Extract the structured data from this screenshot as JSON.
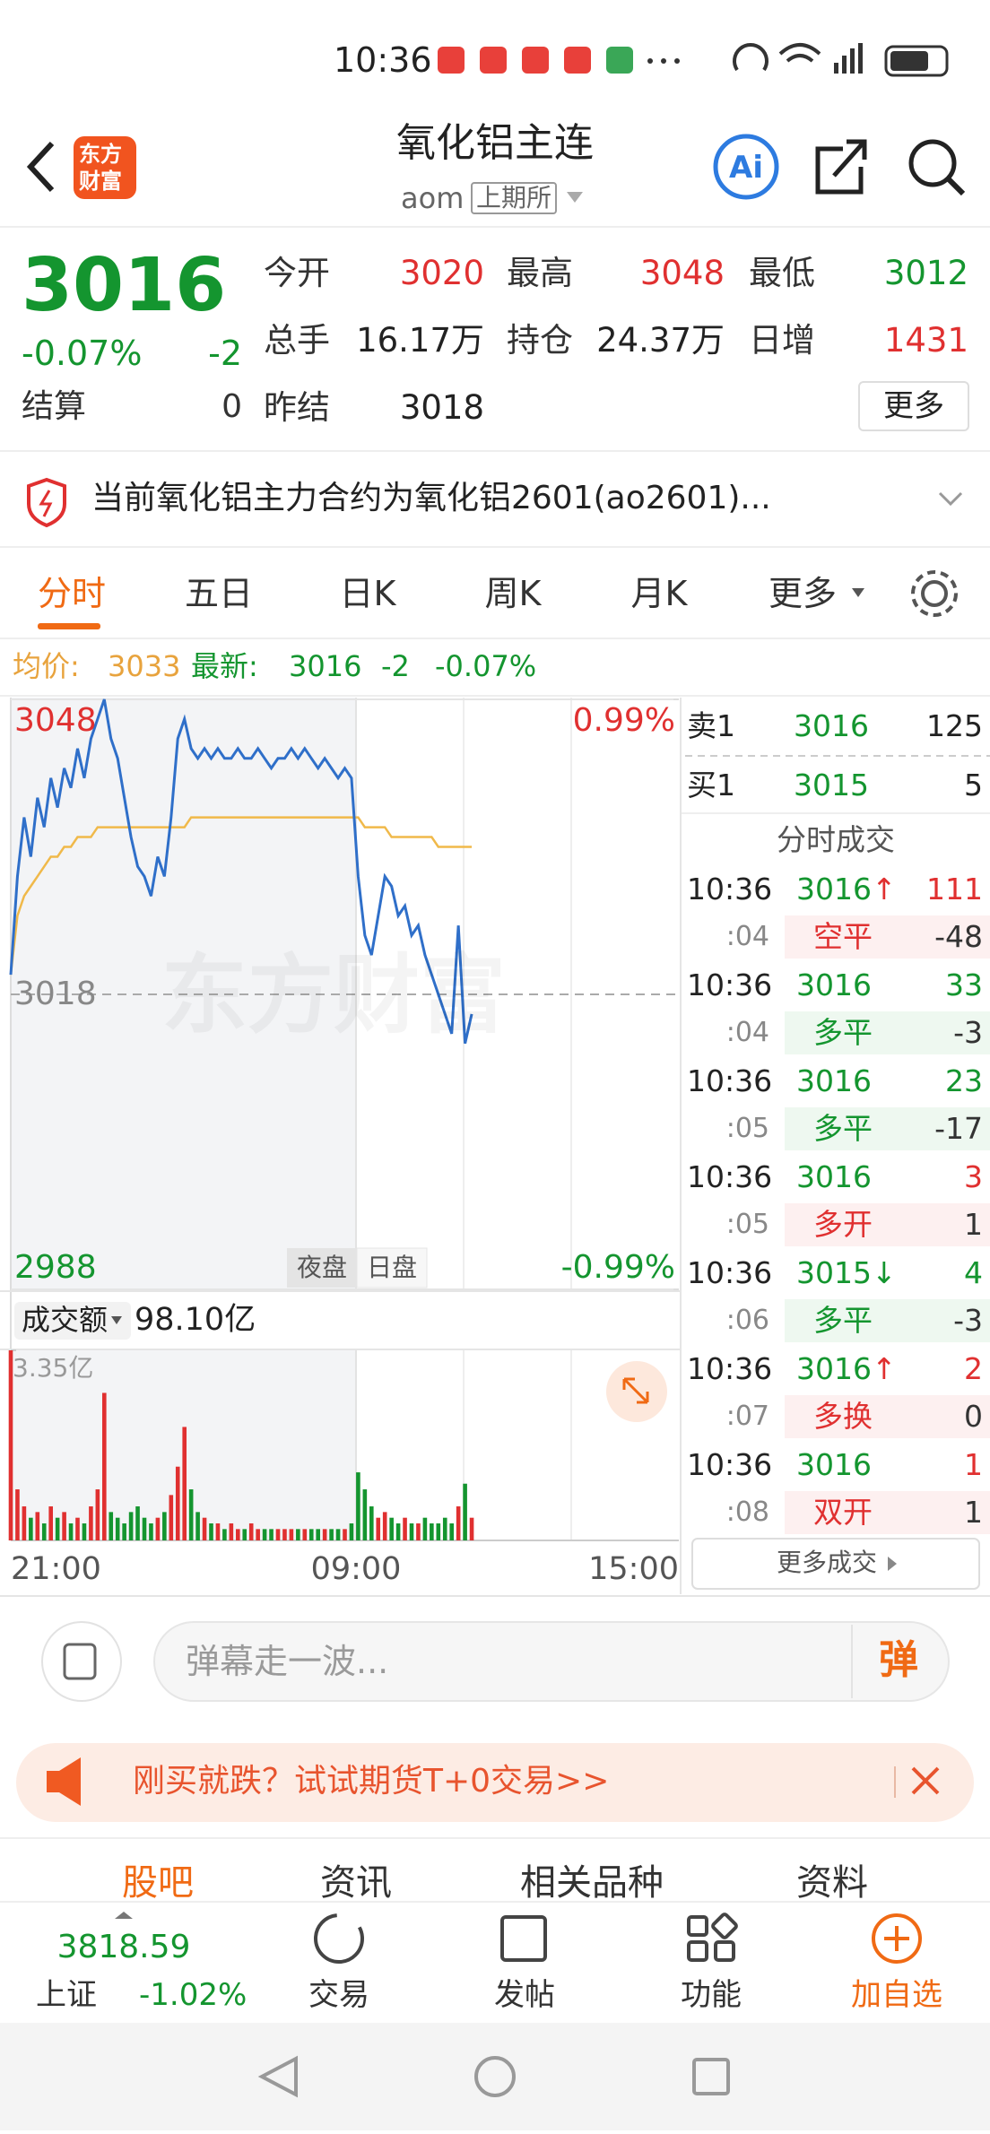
{
  "status_bar": {
    "time": "10:36"
  },
  "header": {
    "logo": [
      "东方",
      "财富"
    ],
    "title": "氧化铝主连",
    "code": "aom",
    "exchange": "上期所",
    "ai": "Ai"
  },
  "quote": {
    "price": "3016",
    "change_pct": "-0.07%",
    "change": "-2",
    "settle_label": "结算",
    "settle": "0",
    "more": "更多",
    "fields": [
      {
        "label": "今开",
        "value": "3020"
      },
      {
        "label": "最高",
        "value": "3048"
      },
      {
        "label": "最低",
        "value": "3012"
      },
      {
        "label": "总手",
        "value": "16.17万"
      },
      {
        "label": "持仓",
        "value": "24.37万"
      },
      {
        "label": "日增",
        "value": "1431"
      },
      {
        "label": "昨结",
        "value": "3018"
      }
    ]
  },
  "notice": "当前氧化铝主力合约为氧化铝2601(ao2601)...",
  "tabs": [
    "分时",
    "五日",
    "日K",
    "周K",
    "月K",
    "更多"
  ],
  "info": {
    "avg_label": "均价:",
    "avg": "3033",
    "last_label": "最新:",
    "last": "3016",
    "change": "-2",
    "change_pct": "-0.07%"
  },
  "chart_data": {
    "type": "line",
    "watermark": "东方财富",
    "ylim": [
      2988,
      3048
    ],
    "yticks": [
      2988,
      3018,
      3048
    ],
    "y2lim": [
      -0.99,
      0.99
    ],
    "y2ticks": [
      {
        "value": -0.99,
        "label": "-0.99%"
      },
      {
        "value": 0.99,
        "label": "0.99%"
      }
    ],
    "xticks": [
      "21:00",
      "09:00",
      "15:00"
    ],
    "sessions": [
      "夜盘",
      "日盘"
    ],
    "series": [
      {
        "color": "#2f6fc9",
        "values": [
          3020,
          3030,
          3036,
          3032,
          3038,
          3035,
          3040,
          3037,
          3041,
          3039,
          3043,
          3040,
          3044,
          3046,
          3048,
          3044,
          3042,
          3038,
          3034,
          3031,
          3030,
          3028,
          3032,
          3030,
          3036,
          3044,
          3046,
          3043,
          3042,
          3043,
          3042,
          3043,
          3042,
          3042,
          3043,
          3042,
          3042,
          3043,
          3042,
          3041,
          3042,
          3042,
          3043,
          3042,
          3043,
          3042,
          3041,
          3042,
          3041,
          3040,
          3041,
          3040,
          3030,
          3024,
          3022,
          3026,
          3030,
          3029,
          3026,
          3027,
          3024,
          3025,
          3022,
          3020,
          3018,
          3016,
          3014,
          3025,
          3013,
          3016
        ]
      },
      {
        "color": "#f0b94a",
        "values": [
          3020,
          3026,
          3028,
          3029,
          3030,
          3031,
          3032,
          3032,
          3033,
          3033,
          3034,
          3034,
          3034,
          3035,
          3035,
          3035,
          3035,
          3035,
          3035,
          3035,
          3035,
          3035,
          3035,
          3035,
          3035,
          3035,
          3035,
          3036,
          3036,
          3036,
          3036,
          3036,
          3036,
          3036,
          3036,
          3036,
          3036,
          3036,
          3036,
          3036,
          3036,
          3036,
          3036,
          3036,
          3036,
          3036,
          3036,
          3036,
          3036,
          3036,
          3036,
          3036,
          3036,
          3035,
          3035,
          3035,
          3035,
          3034,
          3034,
          3034,
          3034,
          3034,
          3034,
          3034,
          3033,
          3033,
          3033,
          3033,
          3033,
          3033
        ]
      }
    ],
    "volume": {
      "label": "成交额",
      "total": "98.10亿",
      "ylim": [
        0,
        3.35
      ],
      "yticks": [
        {
          "value": 3.35,
          "label": "3.35亿"
        }
      ],
      "colors": [
        "#e03030",
        "#14952f"
      ],
      "values": [
        3.35,
        0.9,
        0.6,
        0.4,
        0.5,
        0.3,
        0.6,
        0.4,
        0.5,
        0.3,
        0.4,
        0.3,
        0.6,
        0.9,
        2.6,
        0.5,
        0.4,
        0.3,
        0.5,
        0.6,
        0.4,
        0.3,
        0.4,
        0.5,
        0.8,
        1.3,
        2.0,
        0.9,
        0.5,
        0.4,
        0.3,
        0.3,
        0.2,
        0.3,
        0.2,
        0.2,
        0.3,
        0.2,
        0.2,
        0.2,
        0.2,
        0.2,
        0.2,
        0.2,
        0.2,
        0.2,
        0.2,
        0.2,
        0.2,
        0.2,
        0.2,
        0.3,
        1.2,
        0.9,
        0.6,
        0.4,
        0.5,
        0.4,
        0.3,
        0.4,
        0.3,
        0.3,
        0.4,
        0.3,
        0.3,
        0.4,
        0.3,
        0.6,
        1.0,
        0.4
      ]
    }
  },
  "order_book": {
    "ask_label": "卖1",
    "ask_price": "3016",
    "ask_volume": "125",
    "bid_label": "买1",
    "bid_price": "3015",
    "bid_volume": "5"
  },
  "trades_title": "分时成交",
  "trades": [
    {
      "time": "10:36",
      "price": "3016",
      "arrow": "↑",
      "volume": "111",
      "sub_time": ":04",
      "kind": "空平",
      "delta": "-48"
    },
    {
      "time": "10:36",
      "price": "3016",
      "arrow": "",
      "volume": "33",
      "sub_time": ":04",
      "kind": "多平",
      "delta": "-3"
    },
    {
      "time": "10:36",
      "price": "3016",
      "arrow": "",
      "volume": "23",
      "sub_time": ":05",
      "kind": "多平",
      "delta": "-17"
    },
    {
      "time": "10:36",
      "price": "3016",
      "arrow": "",
      "volume": "3",
      "sub_time": ":05",
      "kind": "多开",
      "delta": "1"
    },
    {
      "time": "10:36",
      "price": "3015",
      "arrow": "↓",
      "volume": "4",
      "sub_time": ":06",
      "kind": "多平",
      "delta": "-3"
    },
    {
      "time": "10:36",
      "price": "3016",
      "arrow": "↑",
      "volume": "2",
      "sub_time": ":07",
      "kind": "多换",
      "delta": "0"
    },
    {
      "time": "10:36",
      "price": "3016",
      "arrow": "",
      "volume": "1",
      "sub_time": ":08",
      "kind": "双开",
      "delta": "1"
    }
  ],
  "more_trades": "更多成交",
  "comment": {
    "placeholder": "弹幕走一波...",
    "button": "弹"
  },
  "promo": "刚买就跌？试试期货T+0交易>>",
  "section_tabs": [
    "股吧",
    "资讯",
    "相关品种",
    "资料"
  ],
  "bottom_bar": {
    "index_value": "3818.59",
    "index_name": "上证",
    "index_change": "-1.02%",
    "items": [
      "交易",
      "发帖",
      "功能",
      "加自选"
    ]
  }
}
